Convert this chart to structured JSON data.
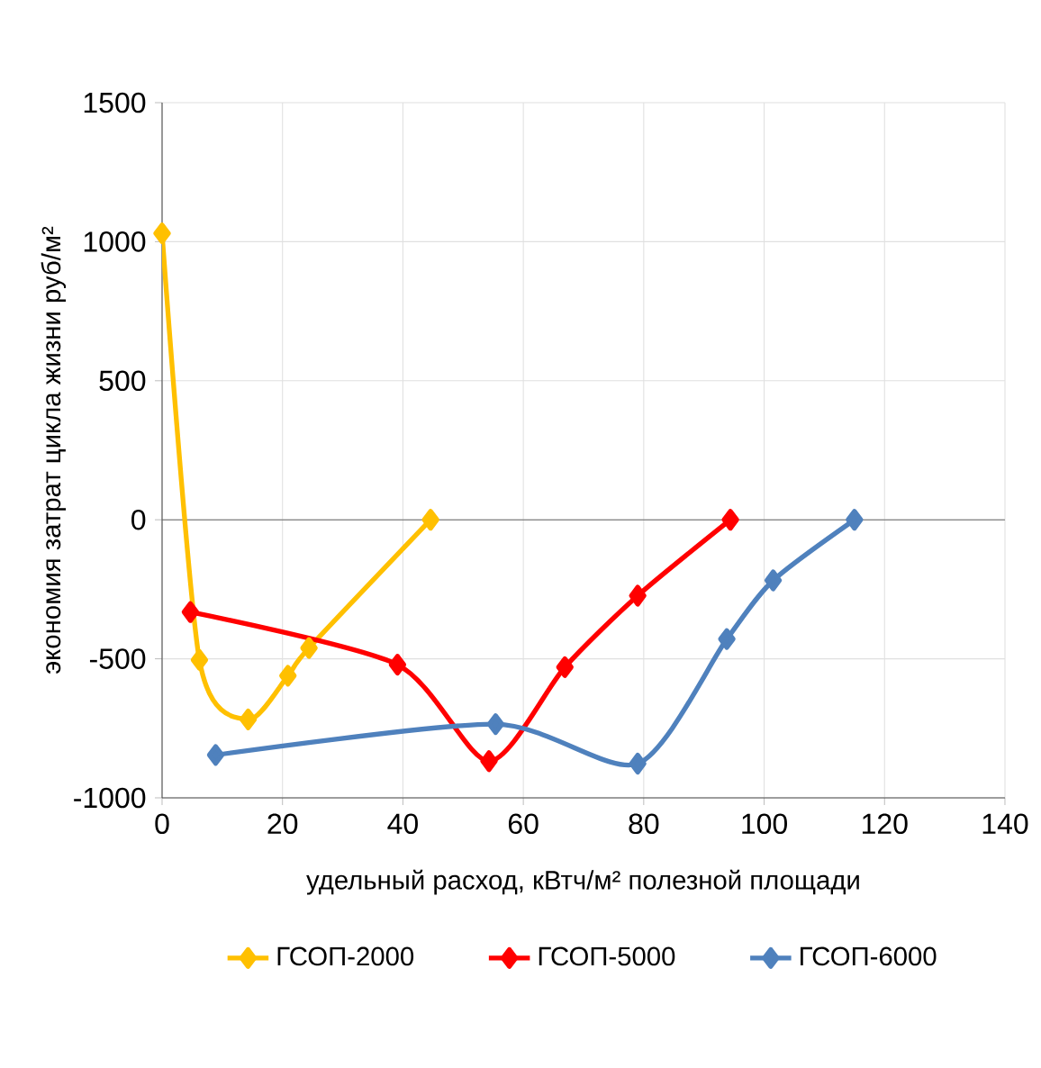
{
  "chart_data": {
    "type": "line",
    "xlabel": "удельный расход, кВтч/м² полезной площади",
    "ylabel": "экономия затрат цикла жизни руб/м²",
    "xlim": [
      0,
      140
    ],
    "xticks": [
      0,
      20,
      40,
      60,
      80,
      100,
      120,
      140
    ],
    "ylim": [
      -1000,
      1500
    ],
    "yticks": [
      -1000,
      -500,
      0,
      500,
      1000,
      1500
    ],
    "grid": true,
    "legend": "bottom",
    "marker": "diamond",
    "line_style": "solid",
    "series": [
      {
        "name": "ГСОП-2000",
        "color": "#ffc000",
        "x": [
          0,
          6.2,
          14.3,
          20.9,
          24.4,
          44.6
        ],
        "values": [
          1030,
          -504,
          -718,
          -561,
          -461,
          0
        ]
      },
      {
        "name": "ГСОП-5000",
        "color": "#ff0000",
        "x": [
          4.7,
          39.1,
          54.3,
          66.9,
          79.0,
          94.4
        ],
        "values": [
          -332,
          -521,
          -868,
          -530,
          -273,
          0
        ]
      },
      {
        "name": "ГСОП-6000",
        "color": "#4f81bd",
        "x": [
          8.9,
          55.4,
          79.0,
          93.8,
          101.5,
          115.0
        ],
        "values": [
          -846,
          -735,
          -877,
          -429,
          -218,
          0
        ]
      }
    ]
  }
}
